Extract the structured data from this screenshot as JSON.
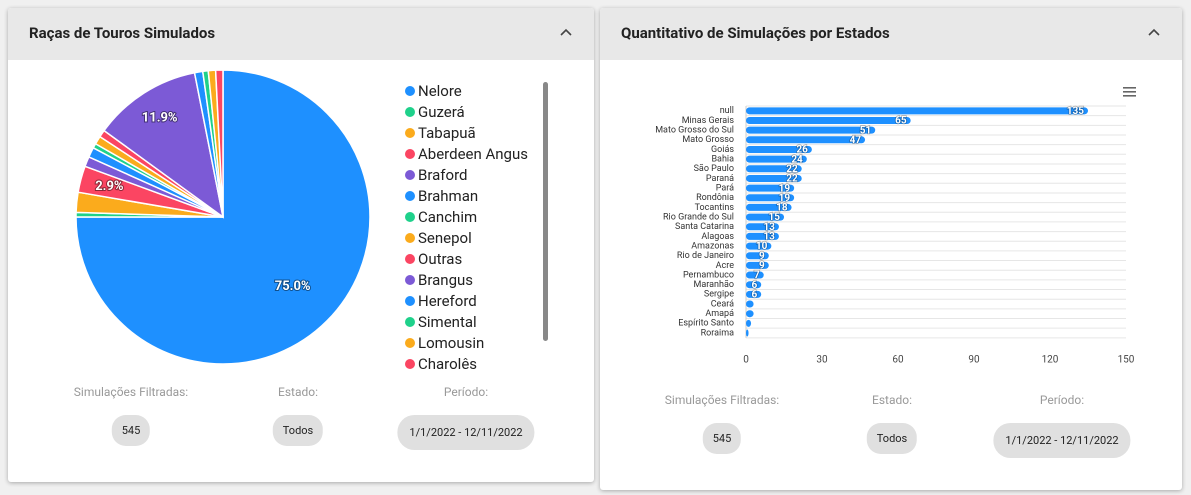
{
  "panels": [
    {
      "title": "Raças de Touros Simulados",
      "filters": [
        {
          "label": "Simulações Filtradas:",
          "value": "545"
        },
        {
          "label": "Estado:",
          "value": "Todos"
        },
        {
          "label": "Período:",
          "value": "1/1/2022 - 12/11/2022"
        }
      ]
    },
    {
      "title": "Quantitativo de Simulações por Estados",
      "filters": [
        {
          "label": "Simulações Filtradas:",
          "value": "545"
        },
        {
          "label": "Estado:",
          "value": "Todos"
        },
        {
          "label": "Período:",
          "value": "1/1/2022 - 12/11/2022"
        }
      ]
    }
  ],
  "chart_data": [
    {
      "type": "pie",
      "categories": [
        "Nelore",
        "Guzerá",
        "Tabapuã",
        "Aberdeen Angus",
        "Braford",
        "Brahman",
        "Canchim",
        "Senepol",
        "Outras",
        "Brangus",
        "Hereford",
        "Simental",
        "Lomousin",
        "Charolês"
      ],
      "values": [
        75.0,
        0.5,
        2.2,
        2.9,
        1.1,
        1.1,
        0.5,
        0.9,
        0.8,
        11.9,
        0.9,
        0.6,
        0.8,
        0.8
      ],
      "value_labels": [
        "75.0%",
        null,
        null,
        "2.9%",
        null,
        null,
        null,
        null,
        null,
        "11.9%",
        null,
        null,
        null,
        null
      ],
      "colors": [
        "#1e90ff",
        "#1fd18b",
        "#fbab1c",
        "#fb4562",
        "#7c5ad6",
        "#1e90ff",
        "#1fd18b",
        "#fbab1c",
        "#fb4562",
        "#7c5ad6",
        "#1e90ff",
        "#1fd18b",
        "#fbab1c",
        "#fb4562"
      ],
      "legend": "right"
    },
    {
      "type": "hbar",
      "categories": [
        "null",
        "Minas Gerais",
        "Mato Grosso do Sul",
        "Mato Grosso",
        "Goiás",
        "Bahia",
        "São Paulo",
        "Paraná",
        "Pará",
        "Rondônia",
        "Tocantins",
        "Rio Grande do Sul",
        "Santa Catarina",
        "Alagoas",
        "Amazonas",
        "Rio de Janeiro",
        "Acre",
        "Pernambuco",
        "Maranhão",
        "Sergipe",
        "Ceará",
        "Amapá",
        "Espírito Santo",
        "Roraima"
      ],
      "values": [
        135,
        65,
        51,
        47,
        26,
        24,
        22,
        22,
        19,
        19,
        18,
        15,
        13,
        13,
        10,
        9,
        9,
        7,
        6,
        6,
        3,
        3,
        2,
        1
      ],
      "color": "#1e90ff",
      "xlim": [
        0,
        150
      ],
      "xticks": [
        0,
        30,
        60,
        90,
        120,
        150
      ],
      "grid": true,
      "data_labels": true
    }
  ]
}
